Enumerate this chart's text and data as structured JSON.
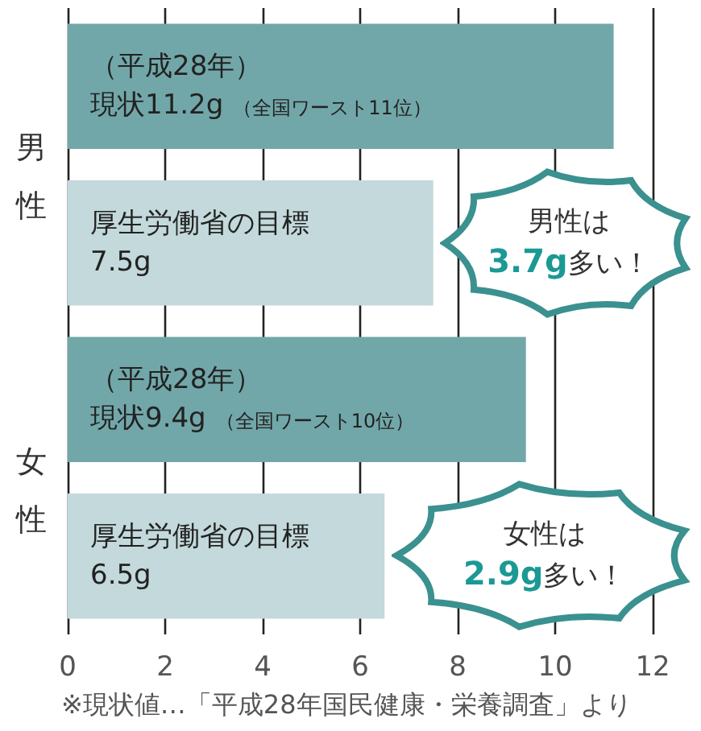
{
  "chart_data": {
    "type": "bar",
    "orientation": "horizontal",
    "categories": [
      null,
      null,
      null,
      null
    ],
    "values": [
      11.2,
      7.5,
      9.4,
      6.5
    ],
    "colors": [
      "#72a7a9",
      "#c3d9db",
      "#72a7a9",
      "#c3d9db"
    ],
    "value_labels": [
      "（平成28年）現状11.2g（全国ワースト11位）",
      "厚生労働省の目標7.5g",
      "（平成28年）現状9.4g（全国ワースト10位）",
      "厚生労働省の目標6.5g"
    ],
    "xlim": [
      0,
      12
    ],
    "xticks": [
      0,
      2,
      4,
      6,
      8,
      10,
      12
    ],
    "grid": "x",
    "annotations": [
      "男性",
      "女性",
      "男性は\n3.7g多い！",
      "女性は\n2.9g多い！",
      "※現状値…「平成28年国民健康・栄養調査」より"
    ]
  }
}
